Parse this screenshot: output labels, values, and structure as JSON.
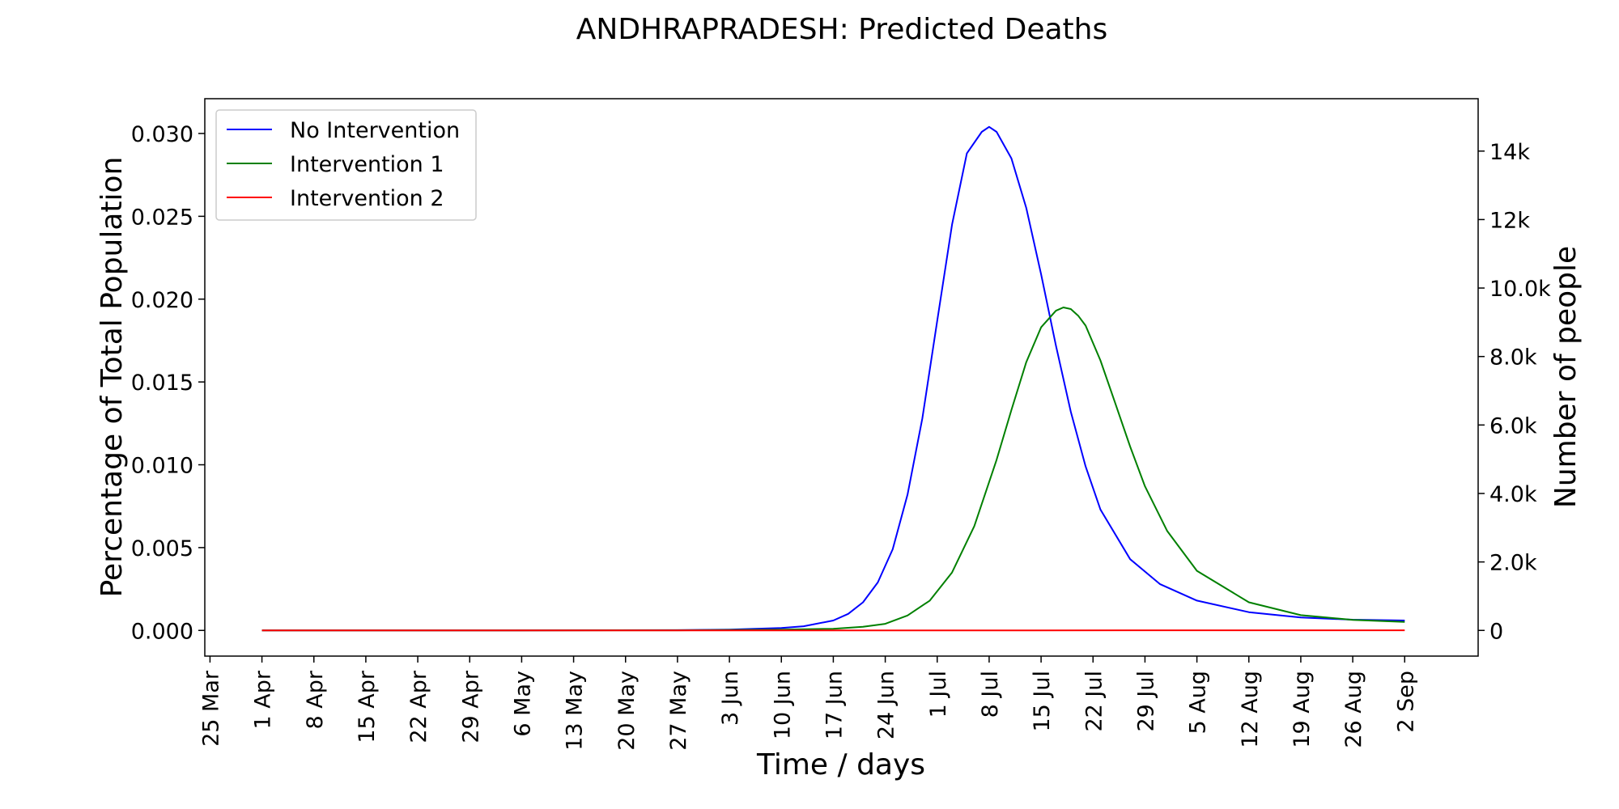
{
  "chart_data": {
    "type": "line",
    "title": "ANDHRAPRADESH: Predicted Deaths",
    "xlabel": "Time / days",
    "ylabel": "Percentage of Total Population",
    "ylabel_right": "Number of people",
    "x_tick_labels": [
      "25 Mar",
      "1 Apr",
      "8 Apr",
      "15 Apr",
      "22 Apr",
      "29 Apr",
      "6 May",
      "13 May",
      "20 May",
      "27 May",
      "3 Jun",
      "10 Jun",
      "17 Jun",
      "24 Jun",
      "1 Jul",
      "8 Jul",
      "15 Jul",
      "22 Jul",
      "29 Jul",
      "5 Aug",
      "12 Aug",
      "19 Aug",
      "26 Aug",
      "2 Sep"
    ],
    "x_tick_days": [
      0,
      7,
      14,
      21,
      28,
      35,
      42,
      49,
      56,
      63,
      70,
      77,
      84,
      91,
      98,
      105,
      112,
      119,
      126,
      133,
      140,
      147,
      154,
      161
    ],
    "xlim": [
      -0.7,
      170.9
    ],
    "ylim": [
      -0.00155,
      0.0321
    ],
    "y_ticks": [
      0.0,
      0.005,
      0.01,
      0.015,
      0.02,
      0.025,
      0.03
    ],
    "y_tick_labels": [
      "0.000",
      "0.005",
      "0.010",
      "0.015",
      "0.020",
      "0.025",
      "0.030"
    ],
    "y2lim": [
      -750,
      15530
    ],
    "y2_ticks": [
      0,
      2000,
      4000,
      6000,
      8000,
      10000,
      12000,
      14000
    ],
    "y2_tick_labels": [
      "0",
      "2.0k",
      "4.0k",
      "6.0k",
      "8.0k",
      "10.0k",
      "12k",
      "14k"
    ],
    "legend_position": "upper-left",
    "grid": false,
    "series": [
      {
        "name": "No Intervention",
        "color": "#0000ff",
        "x": [
          7,
          35,
          63,
          70,
          77,
          80,
          84,
          86,
          88,
          90,
          92,
          94,
          96,
          98,
          100,
          102,
          104,
          105,
          106,
          108,
          110,
          112,
          114,
          116,
          118,
          120,
          124,
          128,
          133,
          140,
          147,
          154,
          161
        ],
        "y": [
          0,
          0,
          2e-05,
          5e-05,
          0.00015,
          0.00025,
          0.0006,
          0.001,
          0.0017,
          0.0029,
          0.0049,
          0.0082,
          0.0128,
          0.0187,
          0.0245,
          0.0288,
          0.0301,
          0.0304,
          0.0301,
          0.0285,
          0.0255,
          0.0215,
          0.0172,
          0.0132,
          0.0099,
          0.0073,
          0.0043,
          0.0028,
          0.0018,
          0.0011,
          0.00078,
          0.00065,
          0.0006
        ]
      },
      {
        "name": "Intervention 1",
        "color": "#008000",
        "x": [
          7,
          35,
          63,
          77,
          84,
          88,
          91,
          94,
          97,
          100,
          103,
          106,
          108,
          110,
          112,
          114,
          115,
          116,
          117,
          118,
          120,
          122,
          124,
          126,
          129,
          133,
          140,
          147,
          154,
          161
        ],
        "y": [
          0,
          0,
          1e-05,
          5e-05,
          0.0001,
          0.00022,
          0.0004,
          0.0009,
          0.0018,
          0.0035,
          0.0063,
          0.0103,
          0.0133,
          0.0162,
          0.0183,
          0.0193,
          0.0195,
          0.0194,
          0.019,
          0.0184,
          0.0163,
          0.0137,
          0.0111,
          0.0087,
          0.006,
          0.0036,
          0.0017,
          0.00092,
          0.00064,
          0.00051
        ]
      },
      {
        "name": "Intervention 2",
        "color": "#ff0000",
        "x": [
          7,
          63,
          105,
          133,
          161
        ],
        "y": [
          0,
          0,
          0,
          1e-05,
          1e-05
        ]
      }
    ]
  }
}
